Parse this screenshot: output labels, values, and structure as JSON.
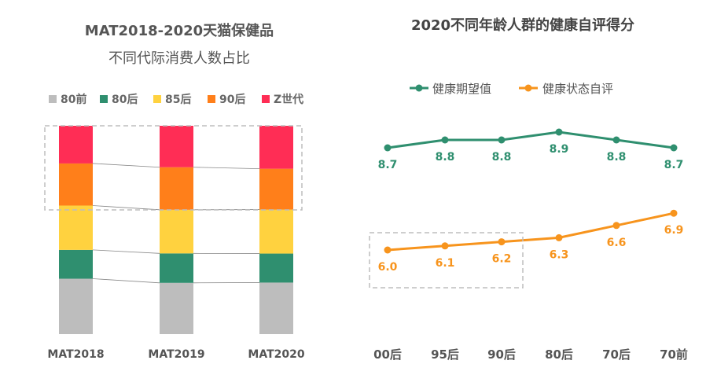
{
  "chart_data": [
    {
      "type": "bar",
      "stacked": true,
      "normalized": true,
      "title_lines": [
        "MAT2018-2020天猫保健品",
        "不同代际消费人数占比"
      ],
      "categories": [
        "MAT2018",
        "MAT2019",
        "MAT2020"
      ],
      "series": [
        {
          "name": "80前",
          "color": "#bdbdbd",
          "values": [
            25.0,
            23.5,
            24.0
          ]
        },
        {
          "name": "80后",
          "color": "#2f8f6f",
          "values": [
            13.0,
            13.5,
            13.5
          ]
        },
        {
          "name": "85后",
          "color": "#ffd23f",
          "values": [
            20.0,
            20.0,
            20.5
          ]
        },
        {
          "name": "90后",
          "color": "#ff7f1a",
          "values": [
            19.0,
            19.5,
            19.0
          ]
        },
        {
          "name": "Z世代",
          "color": "#ff2d55",
          "values": [
            17.0,
            19.0,
            20.0
          ]
        }
      ],
      "legend_position": "top",
      "highlight_box": "90后 + Z世代 segments",
      "grid": false
    },
    {
      "type": "line",
      "title": "2020不同年龄人群的健康自评得分",
      "categories": [
        "00后",
        "95后",
        "90后",
        "80后",
        "70后",
        "70前"
      ],
      "series": [
        {
          "name": "健康期望值",
          "color": "#2f8f6f",
          "values": [
            8.7,
            8.8,
            8.8,
            8.9,
            8.8,
            8.7
          ],
          "labels": [
            "8.7",
            "8.8",
            "8.8",
            "8.9",
            "8.8",
            "8.7"
          ]
        },
        {
          "name": "健康状态自评",
          "color": "#f7941d",
          "values": [
            6.0,
            6.1,
            6.2,
            6.3,
            6.6,
            6.9
          ],
          "labels": [
            "6.0",
            "6.1",
            "6.2",
            "6.3",
            "6.6",
            "6.9"
          ]
        }
      ],
      "legend_position": "top",
      "highlight_box": "00后 to 90后 健康状态自评",
      "grid": false
    }
  ]
}
